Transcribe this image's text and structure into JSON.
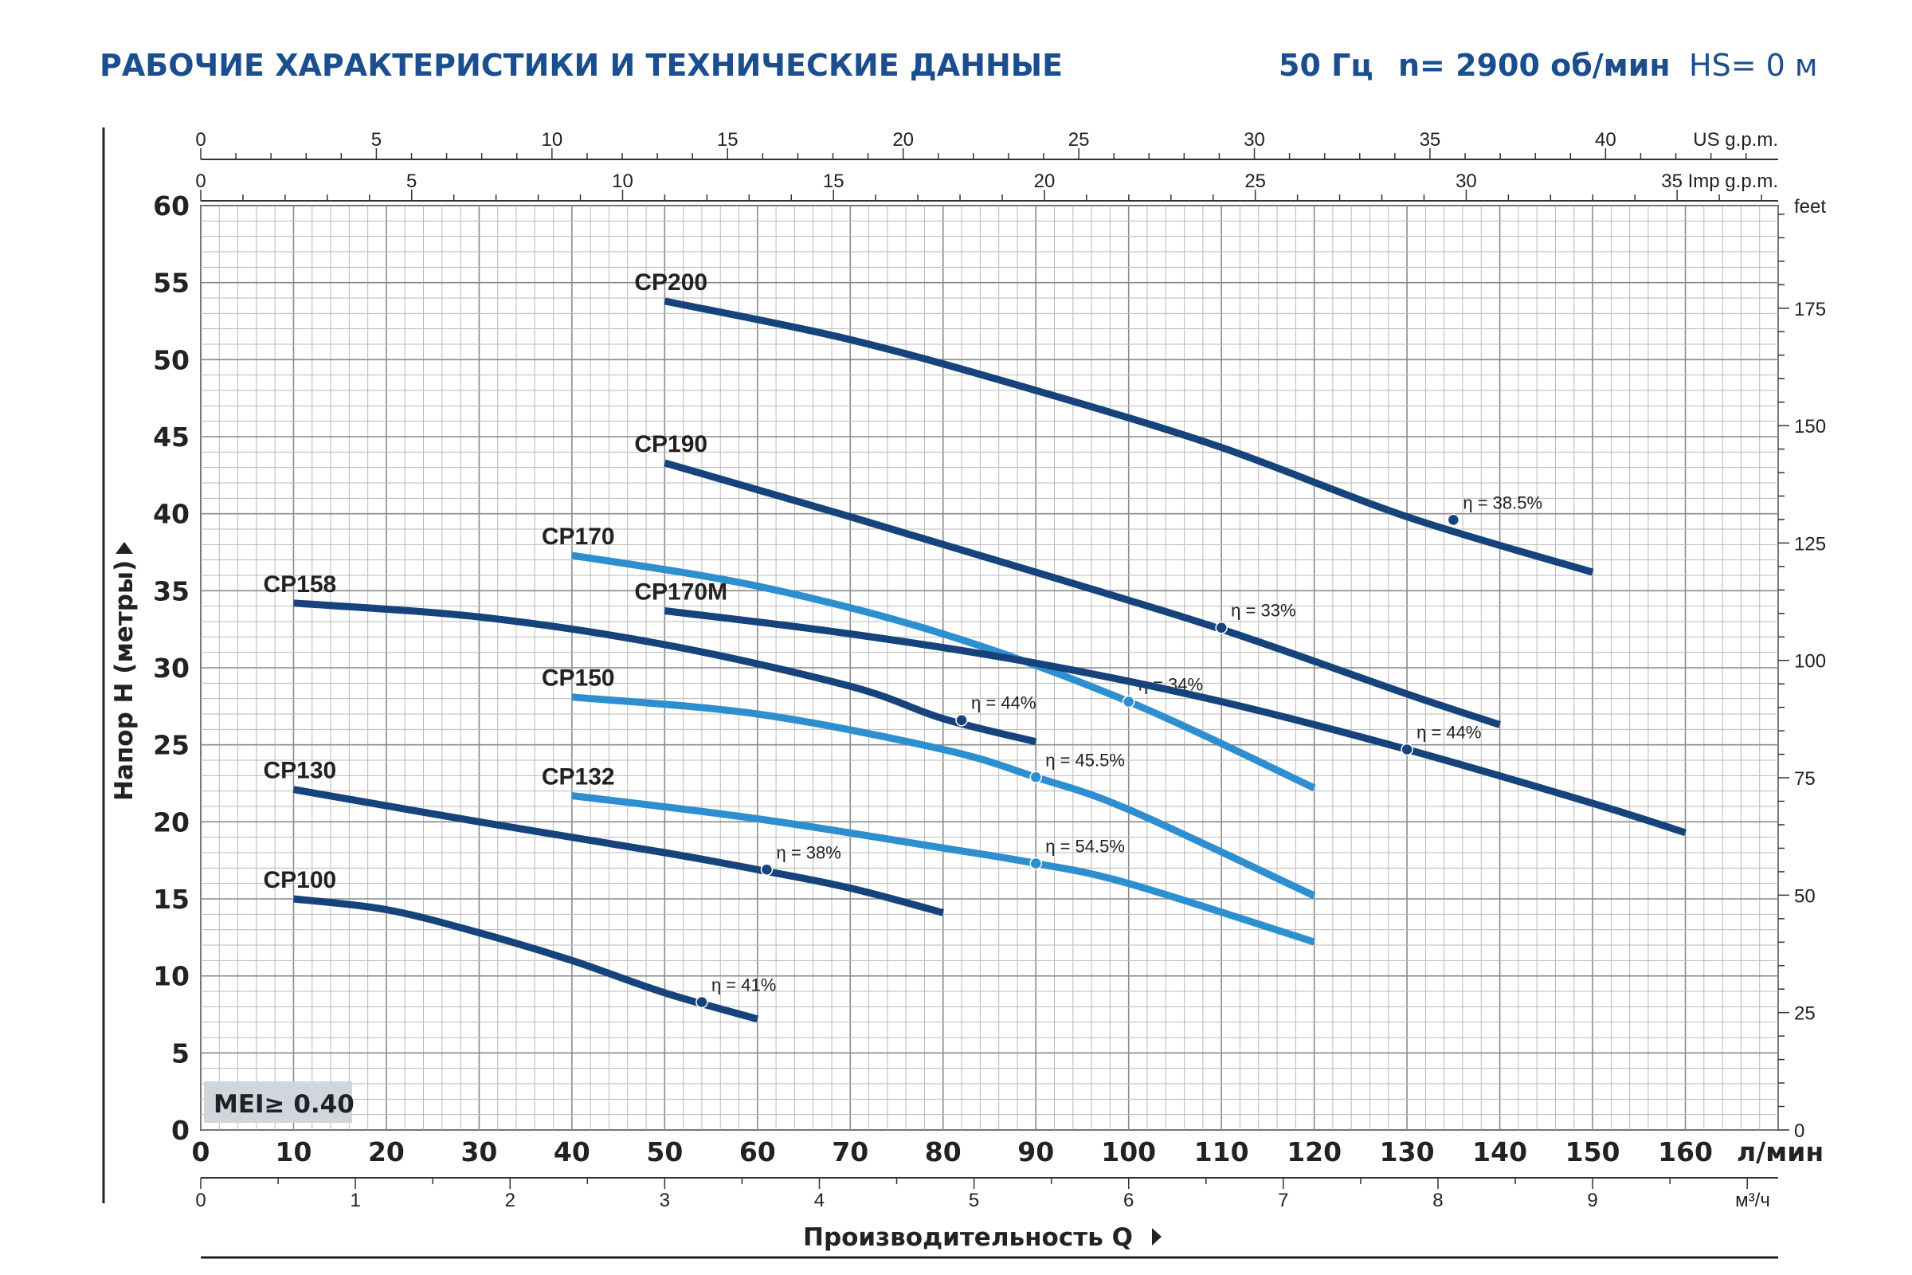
{
  "header": {
    "title": "РАБОЧИЕ ХАРАКТЕРИСТИКИ И ТЕХНИЧЕСКИЕ ДАННЫЕ",
    "freq": "50 Гц",
    "speed": "n= 2900 об/мин",
    "hs": "HS= 0 м"
  },
  "colors": {
    "title_blue": "#1a4e8f",
    "dark_curve": "#17437d",
    "light_curve": "#2e8fd0",
    "grid": "#b9b9b9",
    "grid_major": "#8a8a8a",
    "badge_bg": "#d0d6de",
    "text": "#222222"
  },
  "chart_data": {
    "type": "line",
    "xlabel": "Производительность Q",
    "ylabel": "Напор H (метры)",
    "xunit": "л/мин",
    "xlim": [
      0,
      170
    ],
    "ylim": [
      0,
      60
    ],
    "grid": true,
    "x_ticks": [
      0,
      10,
      20,
      30,
      40,
      50,
      60,
      70,
      80,
      90,
      100,
      110,
      120,
      130,
      140,
      150,
      160
    ],
    "y_ticks": [
      0,
      5,
      10,
      15,
      20,
      25,
      30,
      35,
      40,
      45,
      50,
      55,
      60
    ],
    "secondary_axes": {
      "us_gpm": {
        "label": "US g.p.m.",
        "ticks": [
          0,
          5,
          10,
          15,
          20,
          25,
          30,
          35,
          40
        ]
      },
      "imp_gpm": {
        "label": "35 Imp g.p.m.",
        "ticks": [
          0,
          5,
          10,
          15,
          20,
          25,
          30
        ]
      },
      "m3h": {
        "label": "м³/ч",
        "ticks": [
          0,
          1,
          2,
          3,
          4,
          5,
          6,
          7,
          8,
          9
        ]
      },
      "feet": {
        "label": "feet",
        "ticks": [
          0,
          25,
          50,
          75,
          100,
          125,
          150,
          175
        ]
      }
    },
    "badge": "MEI≥ 0.40",
    "series": [
      {
        "name": "CP200",
        "tone": "dark",
        "x": [
          50,
          70,
          90,
          110,
          130,
          150
        ],
        "y": [
          53.8,
          51.3,
          48.0,
          44.3,
          39.8,
          36.2
        ],
        "eff_point": {
          "x": 135,
          "y": 39.6,
          "label": "η = 38.5%"
        }
      },
      {
        "name": "CP190",
        "tone": "dark",
        "x": [
          50,
          70,
          90,
          110,
          130,
          140
        ],
        "y": [
          43.3,
          39.8,
          36.2,
          32.5,
          28.3,
          26.3
        ],
        "eff_point": {
          "x": 110,
          "y": 32.6,
          "label": "η = 33%"
        }
      },
      {
        "name": "CP170",
        "tone": "light",
        "x": [
          40,
          60,
          80,
          100,
          120
        ],
        "y": [
          37.3,
          35.3,
          32.2,
          27.8,
          22.2
        ],
        "eff_point": {
          "x": 100,
          "y": 27.8,
          "label": "η = 34%"
        }
      },
      {
        "name": "CP170M",
        "tone": "dark",
        "x": [
          50,
          70,
          90,
          110,
          130,
          150,
          160
        ],
        "y": [
          33.7,
          32.2,
          30.3,
          27.8,
          24.7,
          21.2,
          19.3
        ],
        "eff_point": {
          "x": 130,
          "y": 24.7,
          "label": "η = 44%"
        }
      },
      {
        "name": "CP158",
        "tone": "dark",
        "x": [
          10,
          30,
          50,
          70,
          80,
          90
        ],
        "y": [
          34.2,
          33.3,
          31.5,
          28.8,
          26.7,
          25.2
        ],
        "eff_point": {
          "x": 82,
          "y": 26.6,
          "label": "η = 44%"
        }
      },
      {
        "name": "CP150",
        "tone": "light",
        "x": [
          40,
          60,
          80,
          90,
          100,
          120
        ],
        "y": [
          28.1,
          27.0,
          24.7,
          22.9,
          20.8,
          15.2
        ],
        "eff_point": {
          "x": 90,
          "y": 22.9,
          "label": "η = 45.5%"
        }
      },
      {
        "name": "CP132",
        "tone": "light",
        "x": [
          40,
          60,
          80,
          90,
          100,
          120
        ],
        "y": [
          21.7,
          20.2,
          18.3,
          17.3,
          16.0,
          12.2
        ],
        "eff_point": {
          "x": 90,
          "y": 17.3,
          "label": "η = 54.5%"
        }
      },
      {
        "name": "CP130",
        "tone": "dark",
        "x": [
          10,
          30,
          50,
          60,
          70,
          80
        ],
        "y": [
          22.1,
          20.0,
          18.0,
          16.9,
          15.7,
          14.1
        ],
        "eff_point": {
          "x": 61,
          "y": 16.9,
          "label": "η = 38%"
        }
      },
      {
        "name": "CP100",
        "tone": "dark",
        "x": [
          10,
          20,
          30,
          40,
          50,
          60
        ],
        "y": [
          15.0,
          14.3,
          12.8,
          11.0,
          8.9,
          7.2
        ],
        "eff_point": {
          "x": 54,
          "y": 8.3,
          "label": "η = 41%"
        }
      }
    ]
  }
}
